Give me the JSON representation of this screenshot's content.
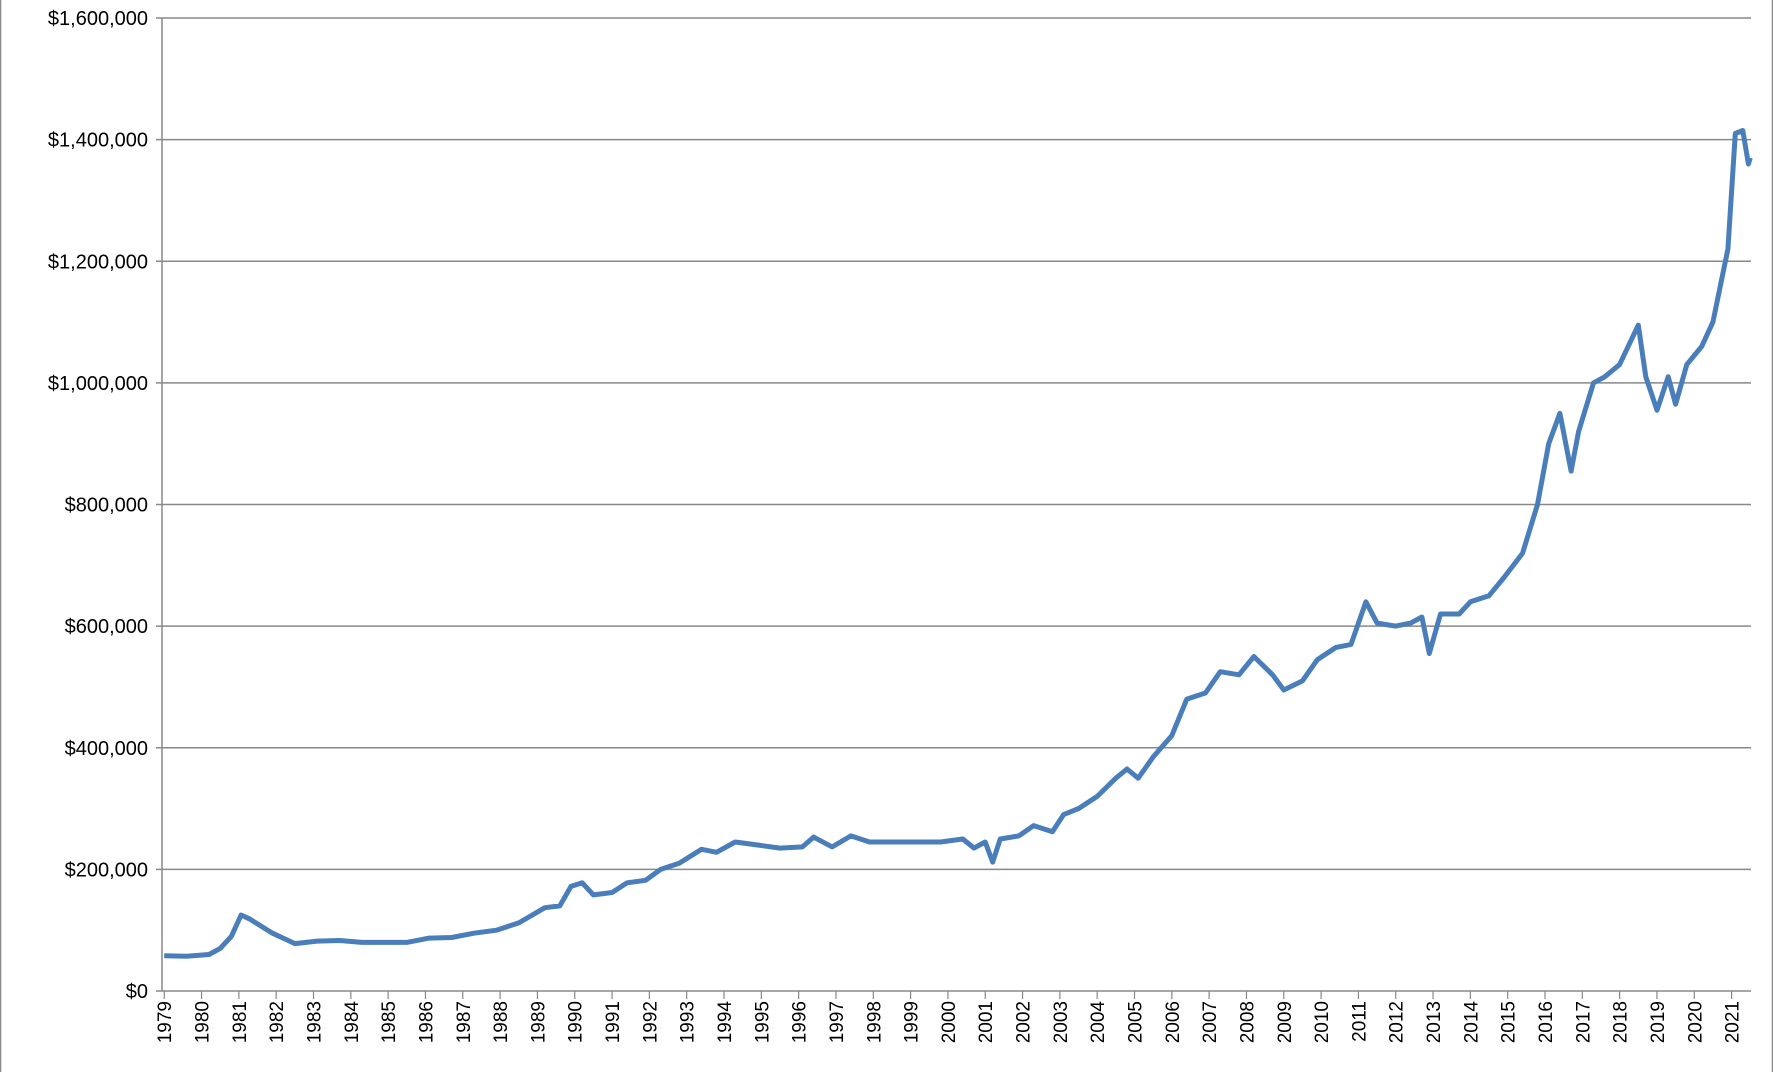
{
  "chart_data": {
    "type": "line",
    "color": "#4a7ebb",
    "grid": true,
    "xlim": [
      1978.94,
      2021.52
    ],
    "xticks": [
      1979,
      1980,
      1981,
      1982,
      1983,
      1984,
      1985,
      1986,
      1987,
      1988,
      1989,
      1990,
      1991,
      1992,
      1993,
      1994,
      1995,
      1996,
      1997,
      1998,
      1999,
      2000,
      2001,
      2002,
      2003,
      2004,
      2005,
      2006,
      2007,
      2008,
      2009,
      2010,
      2011,
      2012,
      2013,
      2014,
      2015,
      2016,
      2017,
      2018,
      2019,
      2020,
      2021
    ],
    "ylim": [
      0,
      1600000
    ],
    "yticks": [
      {
        "value": 0,
        "label": "$0"
      },
      {
        "value": 200000,
        "label": "$200,000"
      },
      {
        "value": 400000,
        "label": "$400,000"
      },
      {
        "value": 600000,
        "label": "$600,000"
      },
      {
        "value": 800000,
        "label": "$800,000"
      },
      {
        "value": 1000000,
        "label": "$1,000,000"
      },
      {
        "value": 1200000,
        "label": "$1,200,000"
      },
      {
        "value": 1400000,
        "label": "$1,400,000"
      },
      {
        "value": 1600000,
        "label": "$1,600,000"
      }
    ],
    "x": [
      1979.0,
      1979.6,
      1980.2,
      1980.5,
      1980.8,
      1981.06,
      1981.3,
      1981.9,
      1982.5,
      1983.1,
      1983.7,
      1984.3,
      1984.9,
      1985.5,
      1986.1,
      1986.7,
      1987.3,
      1987.9,
      1988.5,
      1989.2,
      1989.6,
      1989.9,
      1990.2,
      1990.5,
      1991.0,
      1991.4,
      1991.9,
      1992.3,
      1992.8,
      1993.4,
      1993.8,
      1994.3,
      1994.9,
      1995.5,
      1996.1,
      1996.4,
      1996.9,
      1997.4,
      1997.9,
      1998.5,
      1999.2,
      1999.8,
      2000.4,
      2000.7,
      2001.0,
      2001.2,
      2001.4,
      2001.9,
      2002.3,
      2002.8,
      2003.1,
      2003.5,
      2004.0,
      2004.5,
      2004.8,
      2005.1,
      2005.5,
      2006.0,
      2006.4,
      2006.9,
      2007.3,
      2007.8,
      2008.2,
      2008.7,
      2009.0,
      2009.5,
      2009.9,
      2010.4,
      2010.8,
      2011.2,
      2011.5,
      2012.0,
      2012.4,
      2012.7,
      2012.9,
      2013.2,
      2013.7,
      2014.0,
      2014.5,
      2014.9,
      2015.4,
      2015.8,
      2016.1,
      2016.4,
      2016.7,
      2016.9,
      2017.3,
      2017.6,
      2018.0,
      2018.5,
      2018.7,
      2019.0,
      2019.3,
      2019.5,
      2019.8,
      2020.2,
      2020.5,
      2020.9,
      2021.1,
      2021.3,
      2021.45,
      2021.5
    ],
    "values": [
      58000,
      57000,
      60000,
      70000,
      90000,
      125000,
      118000,
      95000,
      78000,
      82000,
      83000,
      80000,
      80000,
      80000,
      87000,
      88000,
      95000,
      100000,
      112000,
      137000,
      140000,
      172000,
      178000,
      158000,
      162000,
      178000,
      182000,
      200000,
      210000,
      233000,
      228000,
      245000,
      240000,
      235000,
      237000,
      253000,
      237000,
      255000,
      245000,
      245000,
      245000,
      245000,
      250000,
      235000,
      245000,
      212000,
      250000,
      255000,
      272000,
      262000,
      290000,
      300000,
      320000,
      350000,
      365000,
      350000,
      385000,
      420000,
      480000,
      490000,
      525000,
      520000,
      550000,
      520000,
      495000,
      510000,
      545000,
      565000,
      570000,
      640000,
      605000,
      600000,
      605000,
      615000,
      555000,
      620000,
      620000,
      640000,
      650000,
      680000,
      720000,
      800000,
      900000,
      950000,
      855000,
      920000,
      1000000,
      1010000,
      1030000,
      1095000,
      1010000,
      955000,
      1010000,
      965000,
      1030000,
      1060000,
      1100000,
      1220000,
      1410000,
      1415000,
      1360000,
      1370000
    ]
  }
}
